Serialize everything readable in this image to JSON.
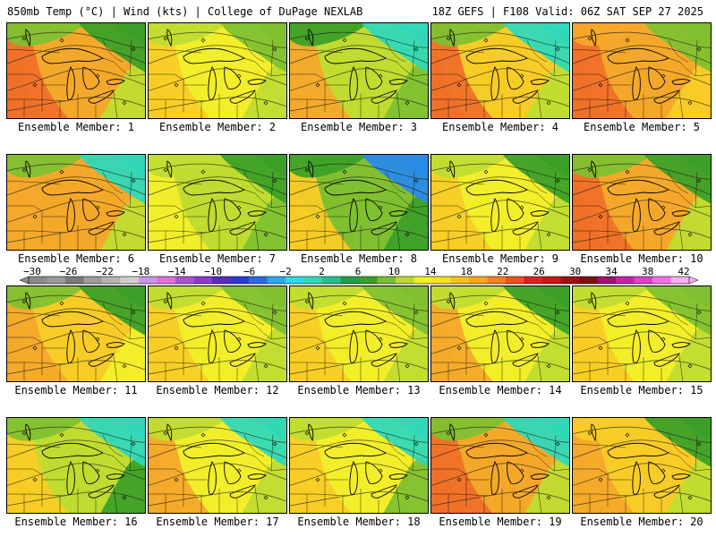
{
  "header": {
    "left": "850mb Temp (°C) | Wind (kts) | College of DuPage NEXLAB",
    "right": "18Z GEFS | F108 Valid: 06Z SAT SEP 27 2025"
  },
  "colorbar": {
    "tick_labels": [
      "-30",
      "-26",
      "-22",
      "-18",
      "-14",
      "-10",
      "-6",
      "-2",
      "2",
      "6",
      "10",
      "14",
      "18",
      "22",
      "26",
      "30",
      "34",
      "38",
      "42"
    ],
    "colors": [
      "#8c8c8c",
      "#999999",
      "#7a7a7a",
      "#9e9e9e",
      "#b5b5b5",
      "#cfcfcf",
      "#c896e6",
      "#e070e0",
      "#b050d8",
      "#8a3ad0",
      "#5a2ac8",
      "#2a3ad8",
      "#2a6ae8",
      "#2aa8f0",
      "#30d8e8",
      "#30d8b8",
      "#28c088",
      "#22a048",
      "#3aa028",
      "#78c030",
      "#b8d830",
      "#f0f020",
      "#f8e020",
      "#f8c020",
      "#f8a818",
      "#f88020",
      "#f05020",
      "#e02020",
      "#c81818",
      "#a01010",
      "#801010",
      "#a01070",
      "#c820a8",
      "#e040d0",
      "#f070e8",
      "#f8b0f0"
    ]
  },
  "color_keys": {
    "orange": "#f4a82a",
    "gold": "#f8cc26",
    "yellow": "#f2ee2a",
    "lime": "#c0dc30",
    "green": "#80c030",
    "darkgreen": "#3ca028",
    "teal": "#30d8b8",
    "cyan": "#30d0e8",
    "blue": "#2a8ae8",
    "red": "#f07028"
  },
  "panels": [
    {
      "label": "Ensemble Member: 1",
      "west": "red",
      "center": "orange",
      "east": "lime",
      "nw": "green",
      "ne": "darkgreen"
    },
    {
      "label": "Ensemble Member: 2",
      "west": "gold",
      "center": "yellow",
      "east": "lime",
      "nw": "lime",
      "ne": "green"
    },
    {
      "label": "Ensemble Member: 3",
      "west": "orange",
      "center": "lime",
      "east": "green",
      "nw": "darkgreen",
      "ne": "teal"
    },
    {
      "label": "Ensemble Member: 4",
      "west": "red",
      "center": "gold",
      "east": "lime",
      "nw": "green",
      "ne": "teal"
    },
    {
      "label": "Ensemble Member: 5",
      "west": "red",
      "center": "orange",
      "east": "gold",
      "nw": "orange",
      "ne": "green"
    },
    {
      "label": "Ensemble Member: 6",
      "west": "orange",
      "center": "orange",
      "east": "lime",
      "nw": "green",
      "ne": "teal"
    },
    {
      "label": "Ensemble Member: 7",
      "west": "yellow",
      "center": "lime",
      "east": "green",
      "nw": "lime",
      "ne": "darkgreen"
    },
    {
      "label": "Ensemble Member: 8",
      "west": "gold",
      "center": "green",
      "east": "darkgreen",
      "nw": "darkgreen",
      "ne": "blue"
    },
    {
      "label": "Ensemble Member: 9",
      "west": "gold",
      "center": "yellow",
      "east": "lime",
      "nw": "lime",
      "ne": "darkgreen"
    },
    {
      "label": "Ensemble Member: 10",
      "west": "red",
      "center": "orange",
      "east": "lime",
      "nw": "green",
      "ne": "darkgreen"
    },
    {
      "label": "Ensemble Member: 11",
      "west": "orange",
      "center": "gold",
      "east": "yellow",
      "nw": "green",
      "ne": "darkgreen"
    },
    {
      "label": "Ensemble Member: 12",
      "west": "gold",
      "center": "yellow",
      "east": "lime",
      "nw": "lime",
      "ne": "green"
    },
    {
      "label": "Ensemble Member: 13",
      "west": "gold",
      "center": "yellow",
      "east": "lime",
      "nw": "lime",
      "ne": "green"
    },
    {
      "label": "Ensemble Member: 14",
      "west": "orange",
      "center": "yellow",
      "east": "lime",
      "nw": "lime",
      "ne": "darkgreen"
    },
    {
      "label": "Ensemble Member: 15",
      "west": "gold",
      "center": "yellow",
      "east": "lime",
      "nw": "lime",
      "ne": "green"
    },
    {
      "label": "Ensemble Member: 16",
      "west": "gold",
      "center": "lime",
      "east": "darkgreen",
      "nw": "green",
      "ne": "teal"
    },
    {
      "label": "Ensemble Member: 17",
      "west": "orange",
      "center": "yellow",
      "east": "lime",
      "nw": "lime",
      "ne": "teal"
    },
    {
      "label": "Ensemble Member: 18",
      "west": "gold",
      "center": "yellow",
      "east": "green",
      "nw": "lime",
      "ne": "teal"
    },
    {
      "label": "Ensemble Member: 19",
      "west": "red",
      "center": "orange",
      "east": "lime",
      "nw": "green",
      "ne": "teal"
    },
    {
      "label": "Ensemble Member: 20",
      "west": "orange",
      "center": "gold",
      "east": "lime",
      "nw": "gold",
      "ne": "darkgreen"
    }
  ]
}
